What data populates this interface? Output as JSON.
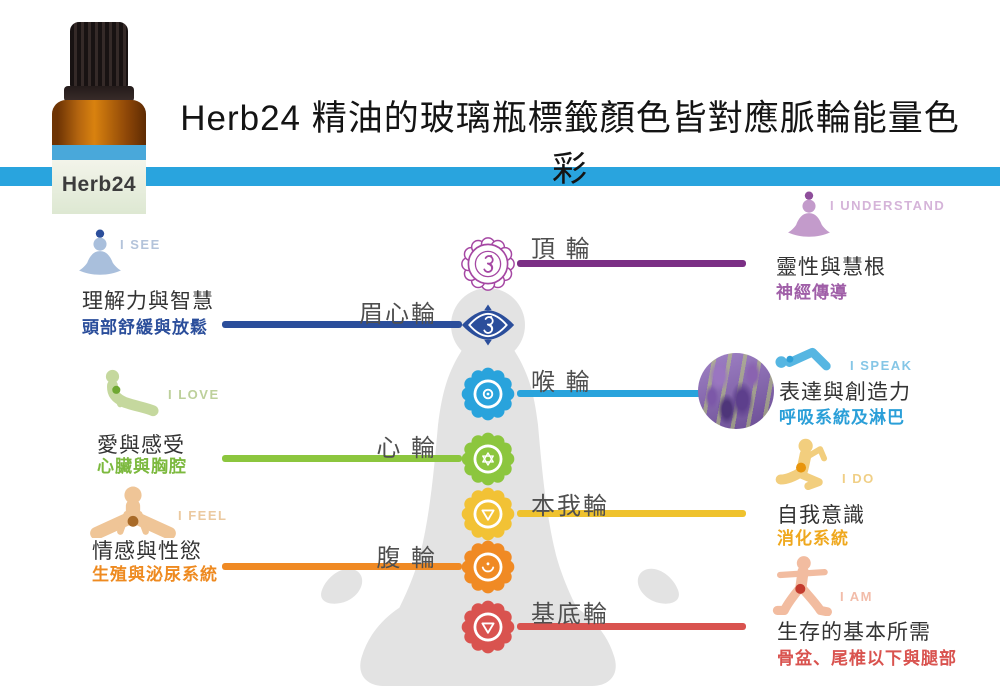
{
  "header": {
    "title": "Herb24 精油的玻璃瓶標籤顏色皆對應脈輪能量色彩",
    "bottle_label": "Herb24",
    "accent_bar_color": "#29A4DE"
  },
  "chakras": [
    {
      "label": "頂 輪",
      "color": "#A547A3",
      "line_color": "#7B2F85",
      "style": "outline",
      "glyph": "om"
    },
    {
      "label": "眉心輪",
      "color": "#2B4E9B",
      "line_color": "#2B4E9B",
      "style": "eye",
      "glyph": "om"
    },
    {
      "label": "喉 輪",
      "color": "#29A3DC",
      "line_color": "#29A3DC",
      "style": "filled",
      "glyph": "ring"
    },
    {
      "label": "心 輪",
      "color": "#8CC63E",
      "line_color": "#8CC63E",
      "style": "filled",
      "glyph": "star"
    },
    {
      "label": "本我輪",
      "color": "#F2C235",
      "line_color": "#EFC22E",
      "style": "filled",
      "glyph": "triangle"
    },
    {
      "label": "腹 輪",
      "color": "#F08A24",
      "line_color": "#F08A24",
      "style": "filled",
      "glyph": "crescent"
    },
    {
      "label": "基底輪",
      "color": "#D9534F",
      "line_color": "#D9534F",
      "style": "filled",
      "glyph": "triangle"
    }
  ],
  "blocks": {
    "left": [
      {
        "statement": "I SEE",
        "statement_color": "#B3C3DA",
        "pose": "meditate",
        "figure_color": "#A9BFDC",
        "dot_color": "#2B4E9B",
        "title": "理解力與智慧",
        "subtitle": "頭部舒緩與放鬆",
        "subtitle_color": "#2B4E9B"
      },
      {
        "statement": "I LOVE",
        "statement_color": "#BDD09B",
        "pose": "cobra",
        "figure_color": "#C5D89E",
        "dot_color": "#6FA832",
        "title": "愛與感受",
        "subtitle": "心臟與胸腔",
        "subtitle_color": "#7CB93E"
      },
      {
        "statement": "I FEEL",
        "statement_color": "#EBC9A0",
        "pose": "straddle",
        "figure_color": "#EFC597",
        "dot_color": "#A86A28",
        "title": "情感與性慾",
        "subtitle": "生殖與泌尿系統",
        "subtitle_color": "#EE8A20"
      }
    ],
    "right": [
      {
        "statement": "I UNDERSTAND",
        "statement_color": "#D5B4D9",
        "pose": "meditate",
        "figure_color": "#C39BCB",
        "dot_color": "#8E4E9B",
        "title": "靈性與慧根",
        "subtitle": "神經傳導",
        "subtitle_color": "#A05FA8"
      },
      {
        "statement": "I SPEAK",
        "statement_color": "#85C6E6",
        "pose": "recline",
        "figure_color": "#56B6E2",
        "dot_color": "#2E9FD6",
        "title": "表達與創造力",
        "subtitle": "呼吸系統及淋巴",
        "subtitle_color": "#2B9FD8"
      },
      {
        "statement": "I DO",
        "statement_color": "#F0CF86",
        "pose": "twist",
        "figure_color": "#F2CE7E",
        "dot_color": "#E8950C",
        "title": "自我意識",
        "subtitle": "消化系統",
        "subtitle_color": "#EFA81E"
      },
      {
        "statement": "I AM",
        "statement_color": "#F2BCA9",
        "pose": "warrior",
        "figure_color": "#F2BCA0",
        "dot_color": "#C43B2E",
        "title": "生存的基本所需",
        "subtitle": "骨盆、尾椎以下與腿部",
        "subtitle_color": "#D9534F"
      }
    ]
  }
}
